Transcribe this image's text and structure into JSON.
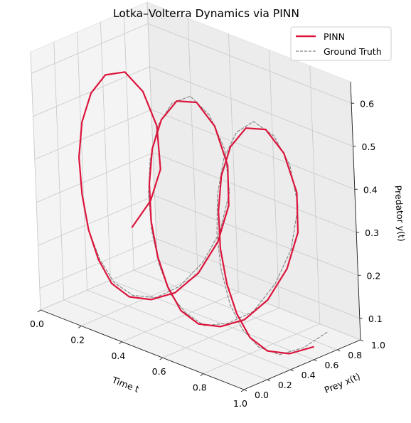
{
  "chart_data": {
    "type": "line",
    "projection": "3d",
    "title": "Lotka–Volterra Dynamics via PINN",
    "xlabel": "Time t",
    "ylabel": "Prey x(t)",
    "zlabel": "Predator y(t)",
    "xlim": [
      0.0,
      1.0
    ],
    "ylim": [
      0.0,
      1.0
    ],
    "zlim": [
      0.05,
      0.65
    ],
    "xticks": [
      "0.0",
      "0.2",
      "0.4",
      "0.6",
      "0.8",
      "1.0"
    ],
    "yticks": [
      "0.0",
      "0.2",
      "0.4",
      "0.6",
      "0.8",
      "1.0"
    ],
    "zticks": [
      "0.1",
      "0.2",
      "0.3",
      "0.4",
      "0.5",
      "0.6"
    ],
    "grid": true,
    "legend_position": "top-right",
    "series": [
      {
        "name": "PINN",
        "color": "#dc143c",
        "style": "solid",
        "points": [
          [
            0.0,
            0.8,
            0.15
          ],
          [
            0.02,
            0.93,
            0.2
          ],
          [
            0.04,
            0.99,
            0.27
          ],
          [
            0.06,
            0.94,
            0.38
          ],
          [
            0.08,
            0.8,
            0.48
          ],
          [
            0.1,
            0.62,
            0.55
          ],
          [
            0.12,
            0.42,
            0.57
          ],
          [
            0.14,
            0.26,
            0.55
          ],
          [
            0.16,
            0.14,
            0.5
          ],
          [
            0.18,
            0.07,
            0.43
          ],
          [
            0.2,
            0.05,
            0.35
          ],
          [
            0.22,
            0.06,
            0.27
          ],
          [
            0.24,
            0.1,
            0.2
          ],
          [
            0.26,
            0.17,
            0.14
          ],
          [
            0.28,
            0.28,
            0.1
          ],
          [
            0.3,
            0.43,
            0.08
          ],
          [
            0.32,
            0.6,
            0.08
          ],
          [
            0.34,
            0.77,
            0.11
          ],
          [
            0.36,
            0.91,
            0.17
          ],
          [
            0.38,
            0.98,
            0.25
          ],
          [
            0.4,
            0.95,
            0.35
          ],
          [
            0.42,
            0.82,
            0.46
          ],
          [
            0.44,
            0.64,
            0.54
          ],
          [
            0.46,
            0.44,
            0.57
          ],
          [
            0.48,
            0.27,
            0.55
          ],
          [
            0.5,
            0.15,
            0.5
          ],
          [
            0.52,
            0.08,
            0.43
          ],
          [
            0.54,
            0.05,
            0.35
          ],
          [
            0.56,
            0.06,
            0.27
          ],
          [
            0.58,
            0.1,
            0.2
          ],
          [
            0.6,
            0.17,
            0.14
          ],
          [
            0.62,
            0.28,
            0.1
          ],
          [
            0.64,
            0.43,
            0.08
          ],
          [
            0.66,
            0.6,
            0.08
          ],
          [
            0.68,
            0.77,
            0.11
          ],
          [
            0.7,
            0.91,
            0.17
          ],
          [
            0.72,
            0.98,
            0.25
          ],
          [
            0.74,
            0.95,
            0.35
          ],
          [
            0.76,
            0.82,
            0.46
          ],
          [
            0.78,
            0.64,
            0.54
          ],
          [
            0.8,
            0.44,
            0.57
          ],
          [
            0.82,
            0.27,
            0.55
          ],
          [
            0.84,
            0.15,
            0.5
          ],
          [
            0.86,
            0.08,
            0.43
          ],
          [
            0.88,
            0.05,
            0.35
          ],
          [
            0.9,
            0.06,
            0.27
          ],
          [
            0.92,
            0.1,
            0.2
          ],
          [
            0.94,
            0.17,
            0.14
          ],
          [
            0.96,
            0.28,
            0.1
          ],
          [
            0.98,
            0.43,
            0.08
          ],
          [
            1.0,
            0.6,
            0.08
          ]
        ]
      },
      {
        "name": "Ground Truth",
        "color": "#808080",
        "style": "dashed",
        "points": [
          [
            0.0,
            0.8,
            0.15
          ],
          [
            0.02,
            0.93,
            0.2
          ],
          [
            0.04,
            0.99,
            0.27
          ],
          [
            0.06,
            0.94,
            0.38
          ],
          [
            0.08,
            0.8,
            0.48
          ],
          [
            0.1,
            0.62,
            0.55
          ],
          [
            0.12,
            0.42,
            0.57
          ],
          [
            0.14,
            0.26,
            0.55
          ],
          [
            0.16,
            0.14,
            0.5
          ],
          [
            0.18,
            0.07,
            0.43
          ],
          [
            0.2,
            0.05,
            0.35
          ],
          [
            0.22,
            0.06,
            0.27
          ],
          [
            0.24,
            0.11,
            0.2
          ],
          [
            0.26,
            0.19,
            0.14
          ],
          [
            0.28,
            0.31,
            0.1
          ],
          [
            0.3,
            0.47,
            0.08
          ],
          [
            0.32,
            0.64,
            0.09
          ],
          [
            0.34,
            0.81,
            0.13
          ],
          [
            0.36,
            0.93,
            0.19
          ],
          [
            0.38,
            0.99,
            0.28
          ],
          [
            0.4,
            0.93,
            0.39
          ],
          [
            0.42,
            0.78,
            0.49
          ],
          [
            0.44,
            0.59,
            0.56
          ],
          [
            0.46,
            0.4,
            0.57
          ],
          [
            0.48,
            0.24,
            0.54
          ],
          [
            0.5,
            0.13,
            0.48
          ],
          [
            0.52,
            0.07,
            0.41
          ],
          [
            0.54,
            0.05,
            0.33
          ],
          [
            0.56,
            0.07,
            0.25
          ],
          [
            0.58,
            0.12,
            0.18
          ],
          [
            0.6,
            0.21,
            0.13
          ],
          [
            0.62,
            0.33,
            0.09
          ],
          [
            0.64,
            0.5,
            0.08
          ],
          [
            0.66,
            0.68,
            0.09
          ],
          [
            0.68,
            0.84,
            0.14
          ],
          [
            0.7,
            0.95,
            0.21
          ],
          [
            0.72,
            0.99,
            0.31
          ],
          [
            0.74,
            0.9,
            0.42
          ],
          [
            0.76,
            0.74,
            0.51
          ],
          [
            0.78,
            0.54,
            0.57
          ],
          [
            0.8,
            0.36,
            0.57
          ],
          [
            0.82,
            0.21,
            0.53
          ],
          [
            0.84,
            0.11,
            0.46
          ],
          [
            0.86,
            0.06,
            0.38
          ],
          [
            0.88,
            0.05,
            0.3
          ],
          [
            0.9,
            0.08,
            0.22
          ],
          [
            0.92,
            0.14,
            0.16
          ],
          [
            0.94,
            0.24,
            0.11
          ],
          [
            0.96,
            0.38,
            0.08
          ],
          [
            0.98,
            0.55,
            0.08
          ],
          [
            1.0,
            0.72,
            0.1
          ]
        ]
      }
    ]
  }
}
